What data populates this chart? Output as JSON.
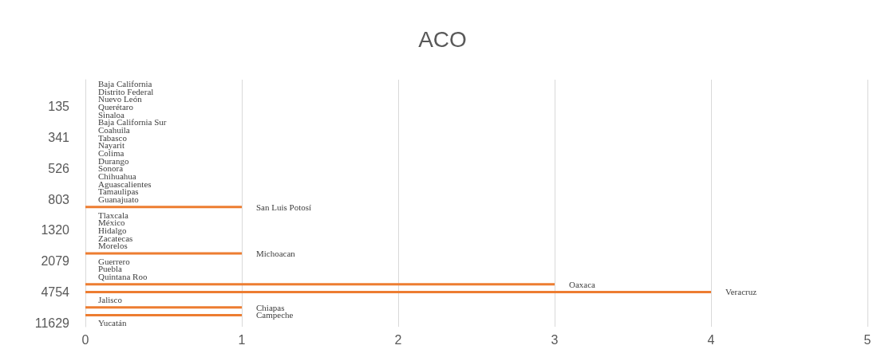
{
  "chart_data": {
    "type": "bar",
    "title": "ACO",
    "orientation": "horizontal",
    "categories": [
      null,
      null,
      null,
      "135",
      null,
      null,
      null,
      "341",
      null,
      null,
      null,
      "526",
      null,
      null,
      null,
      "803",
      null,
      null,
      null,
      "1320",
      null,
      null,
      null,
      "2079",
      null,
      null,
      null,
      "4754",
      null,
      null,
      null,
      "11629"
    ],
    "values": [
      0,
      0,
      0,
      0,
      0,
      0,
      0,
      0,
      0,
      0,
      0,
      0,
      0,
      0,
      0,
      0,
      1,
      0,
      0,
      0,
      0,
      0,
      1,
      0,
      0,
      0,
      3,
      4,
      0,
      1,
      1,
      0
    ],
    "value_labels": [
      "Baja California",
      "Distrito Federal",
      "Nuevo León",
      "Querétaro",
      "Sinaloa",
      "Baja California Sur",
      "Coahuila",
      "Tabasco",
      "Nayarit",
      "Colima",
      "Durango",
      "Sonora",
      "Chihuahua",
      "Aguascalientes",
      "Tamaulipas",
      "Guanajuato",
      "San Luis Potosí",
      "Tlaxcala",
      "México",
      "Hidalgo",
      "Zacatecas",
      "Morelos",
      "Michoacan",
      "Guerrero",
      "Puebla",
      "Quintana Roo",
      "Oaxaca",
      "Veracruz",
      "Jalisco",
      "Chiapas",
      "Campeche",
      "Yucatán"
    ],
    "color": "#ed7d31",
    "xlim": [
      0,
      5
    ],
    "xticks": [
      0,
      1,
      2,
      3,
      4,
      5
    ],
    "grid": "x"
  }
}
